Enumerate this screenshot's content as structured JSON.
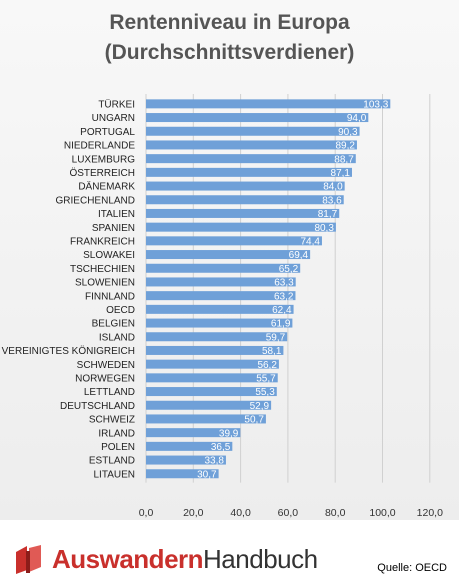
{
  "chart_data": {
    "type": "bar",
    "orientation": "horizontal",
    "title": "Rentenniveau in Europa\n(Durchschnittsverdiener)",
    "categories": [
      "TÜRKEI",
      "UNGARN",
      "PORTUGAL",
      "NIEDERLANDE",
      "LUXEMBURG",
      "ÖSTERREICH",
      "DÄNEMARK",
      "GRIECHENLAND",
      "ITALIEN",
      "SPANIEN",
      "FRANKREICH",
      "SLOWAKEI",
      "TSCHECHIEN",
      "SLOWENIEN",
      "FINNLAND",
      "OECD",
      "BELGIEN",
      "ISLAND",
      "VEREINIGTES KÖNIGREICH",
      "SCHWEDEN",
      "NORWEGEN",
      "LETTLAND",
      "DEUTSCHLAND",
      "SCHWEIZ",
      "IRLAND",
      "POLEN",
      "ESTLAND",
      "LITAUEN"
    ],
    "values": [
      103.3,
      94.0,
      90.3,
      89.2,
      88.7,
      87.1,
      84.0,
      83.6,
      81.7,
      80.3,
      74.4,
      69.4,
      65.2,
      63.3,
      63.2,
      62.4,
      61.9,
      59.7,
      58.1,
      56.2,
      55.7,
      55.3,
      52.9,
      50.7,
      39.9,
      36.5,
      33.8,
      30.7
    ],
    "value_labels": [
      "103,3",
      "94,0",
      "90,3",
      "89,2",
      "88,7",
      "87,1",
      "84,0",
      "83,6",
      "81,7",
      "80,3",
      "74,4",
      "69,4",
      "65,2",
      "63,3",
      "63,2",
      "62,4",
      "61,9",
      "59,7",
      "58,1",
      "56,2",
      "55,7",
      "55,3",
      "52,9",
      "50,7",
      "39,9",
      "36,5",
      "33,8",
      "30,7"
    ],
    "xlim": [
      0,
      120
    ],
    "x_ticks": [
      "0,0",
      "20,0",
      "40,0",
      "60,0",
      "80,0",
      "100,0",
      "120,0"
    ],
    "grid": true,
    "bar_color": "#6fa0d8",
    "label_color": "#ffffff"
  },
  "footer": {
    "logo_part1": "Auswandern",
    "logo_part2": "Handbuch",
    "source": "Quelle: OECD"
  }
}
